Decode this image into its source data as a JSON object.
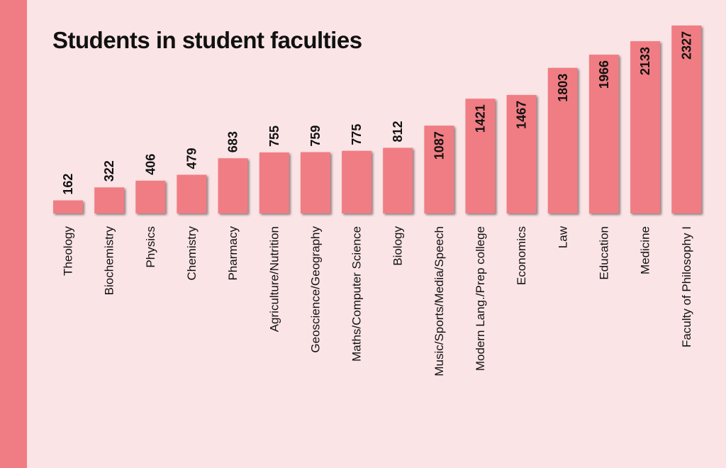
{
  "colors": {
    "background": "#fbe4e6",
    "side_strip": "#f07d83",
    "bar": "#f07d83"
  },
  "chart_data": {
    "type": "bar",
    "title": "Students in student faculties",
    "categories": [
      "Theology",
      "Biochemistry",
      "Physics",
      "Chemistry",
      "Pharmacy",
      "Agriculture/Nutrition",
      "Geoscience/Geography",
      "Maths/Computer Science",
      "Biology",
      "Music/Sports/Media/Speech",
      "Modern Lang./Prep college",
      "Economics",
      "Law",
      "Education",
      "Medicine",
      "Faculty of Philosophy I"
    ],
    "values": [
      162,
      322,
      406,
      479,
      683,
      755,
      759,
      775,
      812,
      1087,
      1421,
      1467,
      1803,
      1966,
      2133,
      2327
    ],
    "value_labels_inside_from": 9,
    "xlabel": "",
    "ylabel": "",
    "ylim": [
      0,
      2327
    ],
    "grid": false,
    "legend": "none"
  }
}
